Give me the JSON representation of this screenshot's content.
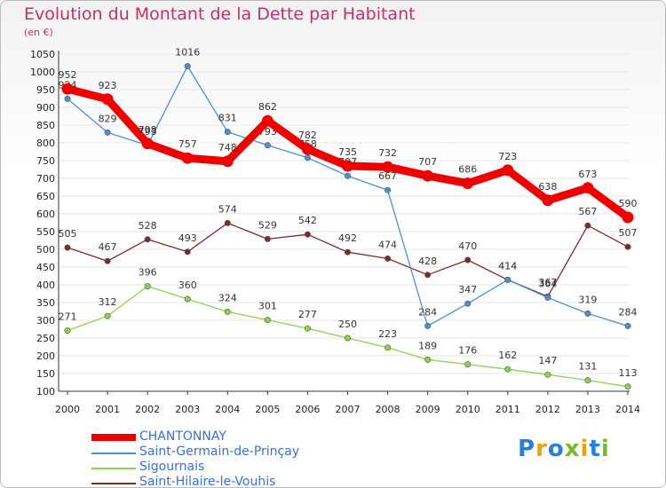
{
  "chart_data": {
    "type": "line",
    "title": "Evolution du Montant de la Dette par Habitant",
    "subtitle": "(en €)",
    "x": [
      "2000",
      "2001",
      "2002",
      "2003",
      "2004",
      "2005",
      "2006",
      "2007",
      "2008",
      "2009",
      "2010",
      "2011",
      "2012",
      "2013",
      "2014"
    ],
    "ylim": [
      100,
      1050
    ],
    "yticks": [
      100,
      150,
      200,
      250,
      300,
      350,
      400,
      450,
      500,
      550,
      600,
      650,
      700,
      750,
      800,
      850,
      900,
      950,
      1000,
      1050
    ],
    "grid": "horizontal",
    "legend_position": "bottom-left",
    "series": [
      {
        "name": "CHANTONNAY",
        "color": "#ee0000",
        "values": [
          952,
          923,
          798,
          757,
          748,
          862,
          782,
          735,
          732,
          707,
          686,
          723,
          638,
          673,
          590
        ]
      },
      {
        "name": "Saint-Germain-de-Prinçay",
        "color": "#4f8fce",
        "values": [
          924,
          829,
          793,
          1016,
          831,
          793,
          758,
          707,
          667,
          284,
          347,
          414,
          364,
          319,
          284
        ]
      },
      {
        "name": "Sigournais",
        "color": "#8fd14f",
        "values": [
          271,
          312,
          396,
          360,
          324,
          301,
          277,
          250,
          223,
          189,
          176,
          162,
          147,
          131,
          113
        ]
      },
      {
        "name": "Saint-Hilaire-le-Vouhis",
        "color": "#7b2d2d",
        "values": [
          505,
          467,
          528,
          493,
          574,
          529,
          542,
          492,
          474,
          428,
          470,
          414,
          367,
          567,
          507
        ]
      }
    ]
  },
  "logo": {
    "text": "Proxiti"
  }
}
